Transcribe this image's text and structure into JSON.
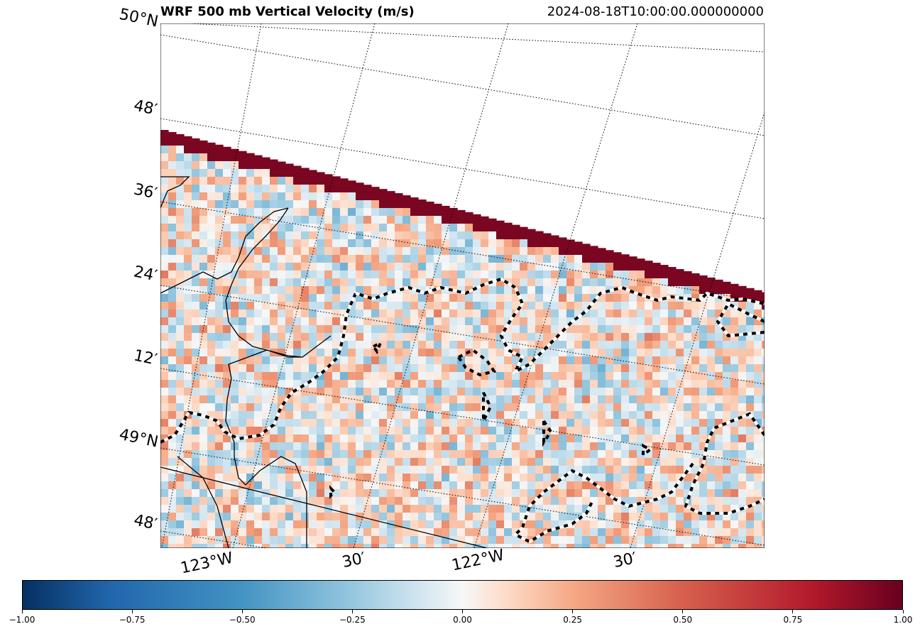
{
  "title": {
    "left": "WRF 500 mb Vertical Velocity (m/s)",
    "right": "2024-08-18T10:00:00.000000000"
  },
  "lat_labels": [
    "50°N",
    "48′",
    "36′",
    "24′",
    "12′",
    "49°N",
    "48′"
  ],
  "lon_labels": [
    "123°W",
    "30′",
    "122°W",
    "30′"
  ],
  "colorbar": {
    "cmap": "RdBu_r",
    "min": -1.0,
    "max": 1.0,
    "tick_labels": [
      "−1.00",
      "−0.75",
      "−0.50",
      "−0.25",
      "0.00",
      "0.25",
      "0.50",
      "0.75",
      "1.00"
    ]
  },
  "colors": {
    "strong_up": "#67001f",
    "strong_down": "#053061",
    "neutral": "#f7f7f7"
  }
}
